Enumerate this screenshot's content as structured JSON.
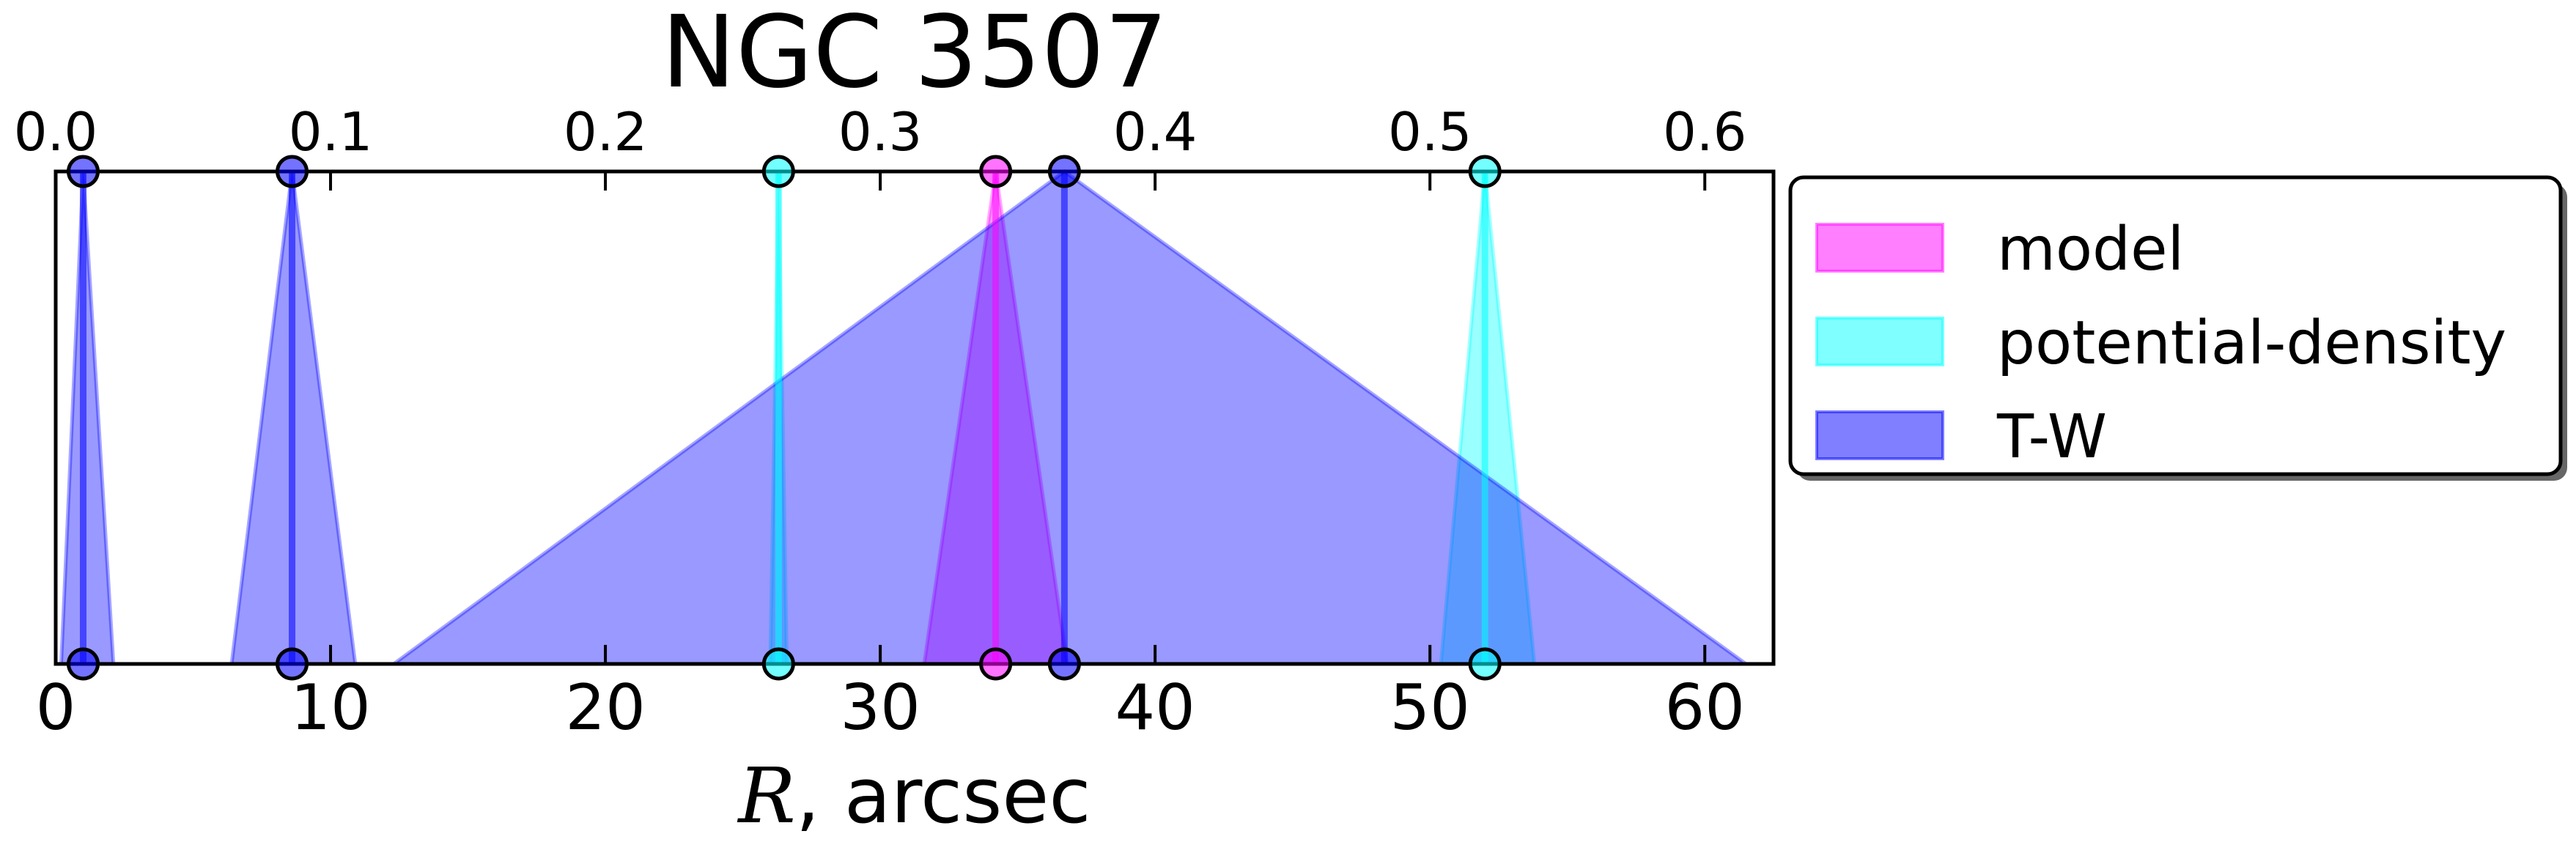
{
  "chart_data": {
    "type": "area",
    "title": "NGC 3507",
    "xlabel_var": "R",
    "xlabel_unit": ", arcsec",
    "xlim": [
      0,
      62.5
    ],
    "ylim": [
      0,
      1
    ],
    "top_axis": {
      "xlim": [
        0,
        0.625
      ],
      "ticks": [
        0.0,
        0.1,
        0.2,
        0.3,
        0.4,
        0.5,
        0.6
      ],
      "tick_labels": [
        "0.0",
        "0.1",
        "0.2",
        "0.3",
        "0.4",
        "0.5",
        "0.6"
      ]
    },
    "bottom_ticks": [
      0,
      10,
      20,
      30,
      40,
      50,
      60
    ],
    "bottom_tick_labels": [
      "0",
      "10",
      "20",
      "30",
      "40",
      "50",
      "60"
    ],
    "grid": false,
    "legend_position": "outside-right",
    "series": [
      {
        "name": "model",
        "color": "#ff00ff",
        "intervals": [
          {
            "center": 34.2,
            "low": 31.6,
            "high": 36.8
          }
        ]
      },
      {
        "name": "potential-density",
        "color": "#00ffff",
        "intervals": [
          {
            "center": 26.3,
            "low": 26.0,
            "high": 26.6
          },
          {
            "center": 52.0,
            "low": 50.4,
            "high": 53.8
          }
        ]
      },
      {
        "name": "T-W",
        "color": "#0000ff",
        "intervals": [
          {
            "center": 1.0,
            "low": 0.2,
            "high": 2.1
          },
          {
            "center": 8.6,
            "low": 6.4,
            "high": 10.9
          },
          {
            "center": 36.7,
            "low": 12.3,
            "high": 61.5
          }
        ]
      }
    ]
  }
}
